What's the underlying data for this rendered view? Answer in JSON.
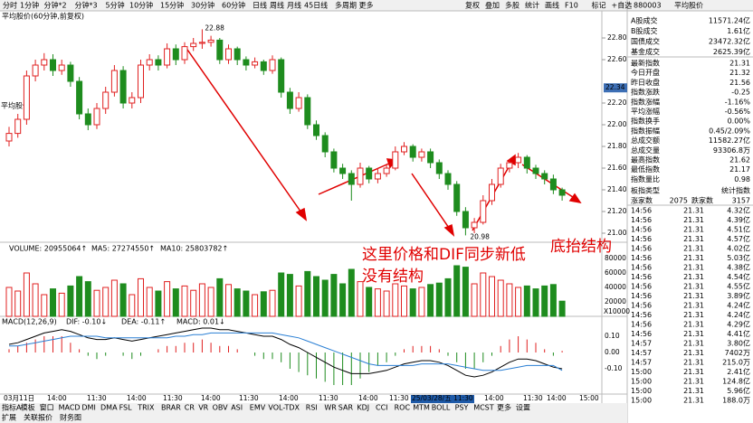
{
  "toolbar": {
    "periods": [
      "分时",
      "1分钟",
      "分钟*2",
      "分钟*3",
      "5分钟",
      "10分钟",
      "15分钟",
      "30分钟",
      "60分钟",
      "日线",
      "周线",
      "月线",
      "45日线",
      "多周期",
      "更多"
    ],
    "active": 8,
    "tools": [
      "复权",
      "叠加",
      "多股",
      "统计",
      "画线",
      "F10",
      "标记",
      "+自选"
    ]
  },
  "chart": {
    "title": "平均股价(60分钟,前复权)",
    "side_label": "平均股价",
    "high_label": "22.88",
    "low_label": "20.98",
    "current": {
      "value": 22.34,
      "label": "22.34"
    },
    "yticks": [
      {
        "value": 22.8,
        "label": "22.80"
      },
      {
        "value": 22.6,
        "label": "22.60"
      },
      {
        "value": 22.2,
        "label": "22.20"
      },
      {
        "value": 22,
        "label": "22.00"
      },
      {
        "value": 21.8,
        "label": "21.80"
      },
      {
        "value": 21.6,
        "label": "21.60"
      },
      {
        "value": 21.4,
        "label": "21.40"
      },
      {
        "value": 21.2,
        "label": "21.20"
      },
      {
        "value": 21,
        "label": "21.00"
      }
    ],
    "up_color": "#e02020",
    "down_color": "#1e8c1e",
    "candles": [
      [
        21.85,
        21.98,
        21.8,
        21.92
      ],
      [
        21.92,
        22.1,
        21.88,
        22.05
      ],
      [
        22.05,
        22.5,
        22.0,
        22.45
      ],
      [
        22.45,
        22.6,
        22.4,
        22.55
      ],
      [
        22.55,
        22.66,
        22.5,
        22.6
      ],
      [
        22.6,
        22.65,
        22.45,
        22.5
      ],
      [
        22.5,
        22.6,
        22.46,
        22.55
      ],
      [
        22.55,
        22.58,
        22.35,
        22.4
      ],
      [
        22.4,
        22.44,
        22.05,
        22.1
      ],
      [
        22.1,
        22.15,
        21.95,
        22.0
      ],
      [
        22.0,
        22.2,
        21.96,
        22.15
      ],
      [
        22.15,
        22.35,
        22.1,
        22.3
      ],
      [
        22.3,
        22.55,
        22.26,
        22.5
      ],
      [
        22.5,
        22.54,
        22.15,
        22.2
      ],
      [
        22.2,
        22.3,
        22.15,
        22.25
      ],
      [
        22.25,
        22.6,
        22.2,
        22.55
      ],
      [
        22.55,
        22.65,
        22.5,
        22.6
      ],
      [
        22.6,
        22.64,
        22.5,
        22.55
      ],
      [
        22.55,
        22.75,
        22.52,
        22.7
      ],
      [
        22.7,
        22.74,
        22.55,
        22.6
      ],
      [
        22.6,
        22.76,
        22.56,
        22.72
      ],
      [
        22.72,
        22.8,
        22.68,
        22.75
      ],
      [
        22.75,
        22.88,
        22.7,
        22.76
      ],
      [
        22.76,
        22.82,
        22.72,
        22.78
      ],
      [
        22.78,
        22.8,
        22.56,
        22.6
      ],
      [
        22.6,
        22.74,
        22.56,
        22.7
      ],
      [
        22.7,
        22.72,
        22.55,
        22.6
      ],
      [
        22.6,
        22.63,
        22.5,
        22.55
      ],
      [
        22.55,
        22.62,
        22.52,
        22.58
      ],
      [
        22.58,
        22.6,
        22.46,
        22.5
      ],
      [
        22.5,
        22.64,
        22.47,
        22.6
      ],
      [
        22.6,
        22.62,
        22.25,
        22.3
      ],
      [
        22.3,
        22.34,
        22.1,
        22.15
      ],
      [
        22.15,
        22.3,
        22.12,
        22.25
      ],
      [
        22.25,
        22.28,
        21.96,
        22.0
      ],
      [
        22.0,
        22.04,
        21.86,
        21.9
      ],
      [
        21.9,
        21.93,
        21.7,
        21.75
      ],
      [
        21.75,
        21.78,
        21.56,
        21.6
      ],
      [
        21.6,
        21.64,
        21.5,
        21.55
      ],
      [
        21.55,
        21.58,
        21.3,
        21.45
      ],
      [
        21.45,
        21.65,
        21.42,
        21.6
      ],
      [
        21.6,
        21.62,
        21.46,
        21.5
      ],
      [
        21.5,
        21.6,
        21.46,
        21.55
      ],
      [
        21.55,
        21.64,
        21.52,
        21.6
      ],
      [
        21.6,
        21.8,
        21.58,
        21.75
      ],
      [
        21.75,
        21.84,
        21.72,
        21.8
      ],
      [
        21.8,
        21.82,
        21.66,
        21.7
      ],
      [
        21.7,
        21.78,
        21.66,
        21.75
      ],
      [
        21.75,
        21.78,
        21.6,
        21.65
      ],
      [
        21.65,
        21.68,
        21.5,
        21.55
      ],
      [
        21.55,
        21.58,
        21.4,
        21.45
      ],
      [
        21.45,
        21.48,
        21.16,
        21.2
      ],
      [
        21.2,
        21.24,
        20.98,
        21.05
      ],
      [
        21.05,
        21.14,
        21.0,
        21.1
      ],
      [
        21.1,
        21.35,
        21.08,
        21.3
      ],
      [
        21.3,
        21.5,
        21.26,
        21.45
      ],
      [
        21.45,
        21.64,
        21.42,
        21.6
      ],
      [
        21.6,
        21.68,
        21.56,
        21.65
      ],
      [
        21.65,
        21.74,
        21.6,
        21.7
      ],
      [
        21.7,
        21.72,
        21.55,
        21.6
      ],
      [
        21.6,
        21.63,
        21.5,
        21.55
      ],
      [
        21.55,
        21.58,
        21.45,
        21.5
      ],
      [
        21.5,
        21.54,
        21.36,
        21.4
      ],
      [
        21.4,
        21.42,
        21.3,
        21.35
      ]
    ]
  },
  "volume": {
    "legend": [
      "VOLUME: 20955064↑",
      "MA5: 27274550↑",
      "MA10: 25803782↑"
    ],
    "yticks": [
      80000,
      60000,
      40000,
      20000
    ],
    "unit": "X10000",
    "values": [
      40000,
      35000,
      60000,
      45000,
      30000,
      38000,
      32000,
      42000,
      55000,
      48000,
      36000,
      40000,
      50000,
      45000,
      30000,
      52000,
      40000,
      35000,
      48000,
      38000,
      42000,
      36000,
      45000,
      40000,
      52000,
      44000,
      38000,
      35000,
      30000,
      34000,
      36000,
      60000,
      58000,
      42000,
      62000,
      55000,
      50000,
      58000,
      45000,
      65000,
      48000,
      40000,
      38000,
      35000,
      45000,
      42000,
      38000,
      40000,
      44000,
      46000,
      52000,
      70000,
      68000,
      45000,
      60000,
      55000,
      50000,
      45000,
      40000,
      42000,
      38000,
      42000,
      44000,
      21000
    ]
  },
  "macd": {
    "legend": [
      "MACD(12,26,9)",
      "DIF: -0.10↓",
      "DEA: -0.11↑",
      "MACD: 0.01↓"
    ],
    "yticks": [
      {
        "value": 0.1,
        "label": "0.10"
      },
      {
        "value": 0,
        "label": "0.00"
      },
      {
        "value": -0.1,
        "label": "-0.10"
      }
    ],
    "dif": [
      0.05,
      0.06,
      0.08,
      0.1,
      0.12,
      0.13,
      0.14,
      0.13,
      0.11,
      0.09,
      0.08,
      0.08,
      0.09,
      0.08,
      0.07,
      0.08,
      0.09,
      0.1,
      0.11,
      0.12,
      0.13,
      0.14,
      0.15,
      0.15,
      0.14,
      0.14,
      0.13,
      0.12,
      0.11,
      0.1,
      0.1,
      0.08,
      0.05,
      0.03,
      0,
      -0.03,
      -0.06,
      -0.09,
      -0.11,
      -0.13,
      -0.13,
      -0.13,
      -0.12,
      -0.11,
      -0.09,
      -0.07,
      -0.06,
      -0.05,
      -0.05,
      -0.06,
      -0.08,
      -0.11,
      -0.14,
      -0.15,
      -0.14,
      -0.12,
      -0.09,
      -0.06,
      -0.04,
      -0.04,
      -0.05,
      -0.07,
      -0.09,
      -0.1
    ],
    "dea": [
      0.04,
      0.04,
      0.05,
      0.06,
      0.07,
      0.08,
      0.09,
      0.1,
      0.1,
      0.1,
      0.1,
      0.09,
      0.09,
      0.09,
      0.09,
      0.09,
      0.09,
      0.09,
      0.09,
      0.1,
      0.1,
      0.11,
      0.11,
      0.12,
      0.12,
      0.12,
      0.12,
      0.12,
      0.12,
      0.12,
      0.12,
      0.11,
      0.1,
      0.09,
      0.07,
      0.05,
      0.03,
      0.01,
      -0.01,
      -0.03,
      -0.05,
      -0.07,
      -0.08,
      -0.08,
      -0.08,
      -0.08,
      -0.08,
      -0.07,
      -0.07,
      -0.07,
      -0.07,
      -0.08,
      -0.09,
      -0.1,
      -0.11,
      -0.11,
      -0.11,
      -0.1,
      -0.09,
      -0.08,
      -0.08,
      -0.08,
      -0.08,
      -0.11
    ],
    "hist": [
      0.02,
      0.04,
      0.06,
      0.08,
      0.1,
      0.1,
      0.1,
      0.06,
      0.02,
      -0.02,
      -0.04,
      -0.02,
      0,
      -0.02,
      -0.04,
      -0.02,
      0,
      0.02,
      0.04,
      0.04,
      0.06,
      0.06,
      0.08,
      0.06,
      0.04,
      0.04,
      0.02,
      0,
      -0.02,
      -0.04,
      -0.04,
      -0.06,
      -0.1,
      -0.12,
      -0.14,
      -0.16,
      -0.18,
      -0.2,
      -0.2,
      -0.2,
      -0.16,
      -0.12,
      -0.08,
      -0.06,
      -0.02,
      0.02,
      0.04,
      0.04,
      0.04,
      0.02,
      -0.02,
      -0.06,
      -0.1,
      -0.1,
      -0.06,
      -0.02,
      0.04,
      0.08,
      0.1,
      0.08,
      0.06,
      0.02,
      -0.02,
      0.01
    ]
  },
  "time_axis": [
    "03月11日",
    "14:00",
    "11:30",
    "14:00",
    "11:30",
    "14:00",
    "11:30",
    "14:00",
    "11:30",
    "14:00",
    "11:30",
    "25/03/28/五 11:30",
    "14:00",
    "11:30",
    "14:00",
    "15:00"
  ],
  "annotations": [
    "这里价格和DIF同步新低",
    "没有结构",
    "底抬结构"
  ],
  "indicator_tabs": [
    "指标A",
    "模板",
    "窗口",
    "MACD",
    "DMI",
    "DMA",
    "FSL",
    "TRIX",
    "BRAR",
    "CR",
    "VR",
    "OBV",
    "ASI",
    "EMV",
    "VOL-TDX",
    "RSI",
    "WR",
    "SAR",
    "KDJ",
    "CCI",
    "ROC",
    "MTM",
    "BOLL",
    "PSY",
    "MCST",
    "更多",
    "设置"
  ],
  "bottom_tabs": [
    "扩展",
    "关联报价",
    "财务图"
  ],
  "panel": {
    "code": "880003",
    "name": "平均股价",
    "stats": [
      [
        "A股成交",
        "11571.24亿"
      ],
      [
        "B股成交",
        "1.61亿"
      ],
      [
        "国债成交",
        "23472.32亿"
      ],
      [
        "基金成交",
        "2625.39亿"
      ]
    ],
    "quotes": [
      [
        "最新指数",
        "21.31",
        "#1e8c1e"
      ],
      [
        "今日开盘",
        "21.32",
        "#1e8c1e"
      ],
      [
        "昨日收盘",
        "21.56",
        "#000000"
      ],
      [
        "指数涨跌",
        "-0.25",
        "#1e8c1e"
      ],
      [
        "指数涨幅",
        "-1.16%",
        "#1e8c1e"
      ],
      [
        "平均涨幅",
        "-0.56%",
        "#1e8c1e"
      ],
      [
        "指数换手",
        "0.00%",
        "#000000"
      ],
      [
        "指数振幅",
        "0.45/2.09%",
        "#000000"
      ],
      [
        "总成交额",
        "11582.27亿",
        "#000000"
      ],
      [
        "总成交量",
        "93306.8万",
        "#000000"
      ],
      [
        "最高指数",
        "21.62",
        "#e02020"
      ],
      [
        "最低指数",
        "21.17",
        "#1e8c1e"
      ],
      [
        "指数量比",
        "0.98",
        "#000000"
      ]
    ],
    "type": [
      "板指类型",
      "统计指数"
    ],
    "breadth": [
      "涨家数",
      "2075",
      "跌家数",
      "3157"
    ],
    "trades": [
      [
        "14:56",
        "21.31",
        "4.32亿"
      ],
      [
        "14:56",
        "21.31",
        "4.39亿"
      ],
      [
        "14:56",
        "21.31",
        "4.51亿"
      ],
      [
        "14:56",
        "21.31",
        "4.57亿"
      ],
      [
        "14:56",
        "21.31",
        "4.02亿"
      ],
      [
        "14:56",
        "21.31",
        "5.03亿"
      ],
      [
        "14:56",
        "21.31",
        "4.38亿"
      ],
      [
        "14:56",
        "21.31",
        "4.54亿"
      ],
      [
        "14:56",
        "21.31",
        "4.55亿"
      ],
      [
        "14:56",
        "21.31",
        "3.89亿"
      ],
      [
        "14:56",
        "21.31",
        "4.24亿"
      ],
      [
        "14:56",
        "21.31",
        "4.24亿"
      ],
      [
        "14:56",
        "21.31",
        "4.29亿"
      ],
      [
        "14:56",
        "21.31",
        "4.41亿"
      ],
      [
        "14:57",
        "21.31",
        "3.80亿"
      ],
      [
        "14:57",
        "21.31",
        "7402万"
      ],
      [
        "14:57",
        "21.31",
        "215.0万"
      ],
      [
        "15:00",
        "21.31",
        "2.41亿"
      ],
      [
        "15:00",
        "21.31",
        "124.8亿"
      ],
      [
        "15:00",
        "21.31",
        "5.96亿"
      ],
      [
        "15:00",
        "21.31",
        "188.0万"
      ]
    ]
  }
}
